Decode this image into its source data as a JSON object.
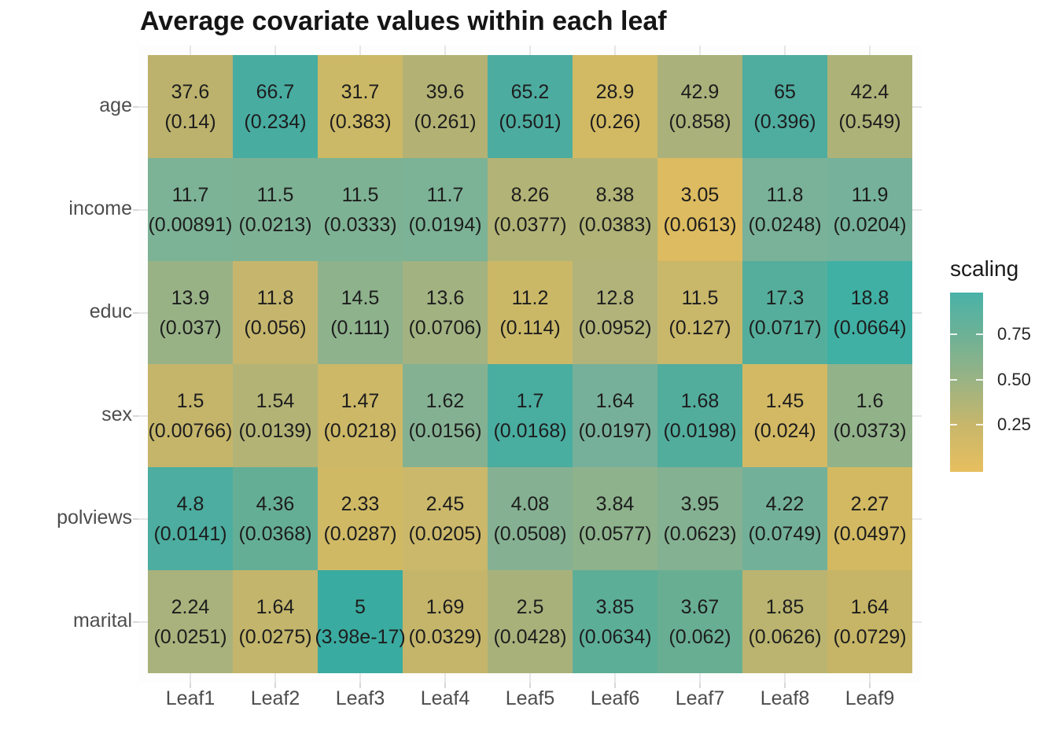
{
  "chart_data": {
    "type": "heatmap",
    "title": "Average covariate values within each leaf",
    "x_categories": [
      "Leaf1",
      "Leaf2",
      "Leaf3",
      "Leaf4",
      "Leaf5",
      "Leaf6",
      "Leaf7",
      "Leaf8",
      "Leaf9"
    ],
    "y_categories": [
      "age",
      "income",
      "educ",
      "sex",
      "polviews",
      "marital"
    ],
    "legend_title": "scaling",
    "legend_tick_labels": [
      "0.75",
      "0.50",
      "0.25"
    ],
    "legend_tick_values": [
      0.75,
      0.5,
      0.25
    ],
    "legend_range": [
      0,
      1
    ],
    "legend_position": "right",
    "colorscale": {
      "low": "#e7bf5f",
      "mid": "#9cb383",
      "high": "#49b2a7"
    },
    "cell_text_format": "mean_(standard_error)",
    "rows": [
      {
        "label": "age",
        "value_display": [
          "37.6",
          "66.7",
          "31.7",
          "39.6",
          "65.2",
          "28.9",
          "42.9",
          "65",
          "42.4"
        ],
        "se_display": [
          "(0.14)",
          "(0.234)",
          "(0.383)",
          "(0.261)",
          "(0.501)",
          "(0.26)",
          "(0.858)",
          "(0.396)",
          "(0.549)"
        ],
        "values": [
          37.6,
          66.7,
          31.7,
          39.6,
          65.2,
          28.9,
          42.9,
          65,
          42.4
        ],
        "se": [
          0.14,
          0.234,
          0.383,
          0.261,
          0.501,
          0.26,
          0.858,
          0.396,
          0.549
        ],
        "colors": [
          "#bcb26d",
          "#48aca1",
          "#ccb967",
          "#b3b274",
          "#4daca0",
          "#d2ba64",
          "#aab17a",
          "#4fada0",
          "#adb278"
        ]
      },
      {
        "label": "income",
        "value_display": [
          "11.7",
          "11.5",
          "11.5",
          "11.7",
          "8.26",
          "8.38",
          "3.05",
          "11.8",
          "11.9"
        ],
        "se_display": [
          "(0.00891)",
          "(0.0213)",
          "(0.0333)",
          "(0.0194)",
          "(0.0377)",
          "(0.0383)",
          "(0.0613)",
          "(0.0248)",
          "(0.0204)"
        ],
        "values": [
          11.7,
          11.5,
          11.5,
          11.7,
          8.26,
          8.38,
          3.05,
          11.8,
          11.9
        ],
        "se": [
          0.00891,
          0.0213,
          0.0333,
          0.0194,
          0.0377,
          0.0383,
          0.0613,
          0.0248,
          0.0204
        ],
        "colors": [
          "#7cb295",
          "#7eb295",
          "#7eb294",
          "#7cb295",
          "#b2b376",
          "#b1b377",
          "#ddbb60",
          "#79b199",
          "#76b19b"
        ]
      },
      {
        "label": "educ",
        "value_display": [
          "13.9",
          "11.8",
          "14.5",
          "13.6",
          "11.2",
          "12.8",
          "11.5",
          "17.3",
          "18.8"
        ],
        "se_display": [
          "(0.037)",
          "(0.056)",
          "(0.111)",
          "(0.0706)",
          "(0.114)",
          "(0.0952)",
          "(0.127)",
          "(0.0717)",
          "(0.0664)"
        ],
        "values": [
          13.9,
          11.8,
          14.5,
          13.6,
          11.2,
          12.8,
          11.5,
          17.3,
          18.8
        ],
        "se": [
          0.037,
          0.056,
          0.111,
          0.0706,
          0.114,
          0.0952,
          0.127,
          0.0717,
          0.0664
        ],
        "colors": [
          "#98b286",
          "#c6b66d",
          "#8eb28c",
          "#a2b281",
          "#cbb867",
          "#b1b37a",
          "#c9b76a",
          "#55ae9b",
          "#40b0a4"
        ]
      },
      {
        "label": "sex",
        "value_display": [
          "1.5",
          "1.54",
          "1.47",
          "1.62",
          "1.7",
          "1.64",
          "1.68",
          "1.45",
          "1.6"
        ],
        "se_display": [
          "(0.00766)",
          "(0.0139)",
          "(0.0218)",
          "(0.0156)",
          "(0.0168)",
          "(0.0197)",
          "(0.0198)",
          "(0.024)",
          "(0.0373)"
        ],
        "values": [
          1.5,
          1.54,
          1.47,
          1.62,
          1.7,
          1.64,
          1.68,
          1.45,
          1.6
        ],
        "se": [
          0.00766,
          0.0139,
          0.0218,
          0.0156,
          0.0168,
          0.0197,
          0.0198,
          0.024,
          0.0373
        ],
        "colors": [
          "#c5b56b",
          "#b3b376",
          "#cdb867",
          "#85b193",
          "#49ada0",
          "#77b09a",
          "#52ad9d",
          "#d3b964",
          "#92b28a"
        ]
      },
      {
        "label": "polviews",
        "value_display": [
          "4.8",
          "4.36",
          "2.33",
          "2.45",
          "4.08",
          "3.84",
          "3.95",
          "4.22",
          "2.27"
        ],
        "se_display": [
          "(0.0141)",
          "(0.0368)",
          "(0.0287)",
          "(0.0205)",
          "(0.0508)",
          "(0.0577)",
          "(0.0623)",
          "(0.0749)",
          "(0.0497)"
        ],
        "values": [
          4.8,
          4.36,
          2.33,
          2.45,
          4.08,
          3.84,
          3.95,
          4.22,
          2.27
        ],
        "se": [
          0.0141,
          0.0368,
          0.0287,
          0.0205,
          0.0508,
          0.0577,
          0.0623,
          0.0749,
          0.0497
        ],
        "colors": [
          "#4cada0",
          "#65ae96",
          "#cfb965",
          "#cbb86a",
          "#85b192",
          "#8db28c",
          "#84b192",
          "#73b09a",
          "#d2b962"
        ]
      },
      {
        "label": "marital",
        "value_display": [
          "2.24",
          "1.64",
          "5",
          "1.69",
          "2.5",
          "3.85",
          "3.67",
          "1.85",
          "1.64"
        ],
        "se_display": [
          "(0.0251)",
          "(0.0275)",
          "(3.98e-17)",
          "(0.0329)",
          "(0.0428)",
          "(0.0634)",
          "(0.062)",
          "(0.0626)",
          "(0.0729)"
        ],
        "values": [
          2.24,
          1.64,
          5,
          1.69,
          2.5,
          3.85,
          3.67,
          1.85,
          1.64
        ],
        "se": [
          0.0251,
          0.0275,
          3.98e-17,
          0.0329,
          0.0428,
          0.0634,
          0.062,
          0.0626,
          0.0729
        ],
        "colors": [
          "#a9b27c",
          "#c3b56b",
          "#3aaba0",
          "#c4b56b",
          "#a9b17b",
          "#5dae97",
          "#68ae92",
          "#bab470",
          "#c6b566"
        ]
      }
    ]
  }
}
